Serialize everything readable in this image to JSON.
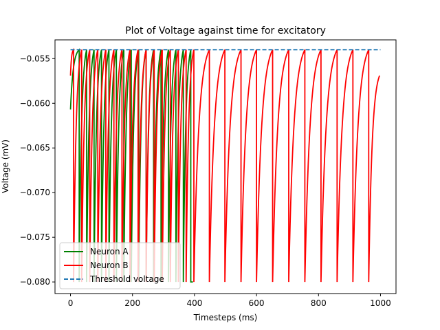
{
  "chart_data": {
    "type": "line",
    "title": "Plot of Voltage against time for excitatory",
    "xlabel": "Timesteps (ms)",
    "ylabel": "Voltage (mV)",
    "xlim": [
      -50,
      1050
    ],
    "ylim": [
      -0.0813,
      -0.0529
    ],
    "x_ticks": [
      0,
      200,
      400,
      600,
      800,
      1000
    ],
    "y_ticks": [
      -0.08,
      -0.075,
      -0.07,
      -0.065,
      -0.06,
      -0.055
    ],
    "y_tick_labels": [
      "−0.080",
      "−0.075",
      "−0.070",
      "−0.065",
      "−0.060",
      "−0.055"
    ],
    "x_tick_labels": [
      "0",
      "200",
      "400",
      "600",
      "800",
      "1000"
    ],
    "grid": false,
    "legend_position": "lower-left",
    "series": [
      {
        "name": "Neuron A",
        "color": "#008000",
        "reset_voltage": -0.08,
        "threshold": -0.054,
        "start": {
          "x": 0,
          "y": -0.0607
        },
        "end": {
          "x": 395,
          "y": -0.08
        },
        "spike_times": [
          28,
          52,
          76,
          100,
          124,
          148,
          172,
          196,
          220,
          244,
          268,
          292,
          316,
          340,
          364,
          388
        ]
      },
      {
        "name": "Neuron B",
        "color": "#ff0000",
        "reset_voltage": -0.08,
        "threshold": -0.054,
        "start": {
          "x": 0,
          "y": -0.0569
        },
        "end": {
          "x": 997,
          "y": -0.0569
        },
        "spike_times": [
          10,
          36,
          62,
          88,
          114,
          140,
          166,
          192,
          218,
          244,
          270,
          296,
          322,
          348,
          373,
          398,
          448,
          498,
          550,
          600,
          652,
          704,
          756,
          808,
          860,
          911,
          962
        ]
      },
      {
        "name": "Threshold voltage",
        "color": "#1f77b4",
        "dashed": true,
        "x": [
          0,
          1000
        ],
        "y": [
          -0.054,
          -0.054
        ]
      }
    ]
  }
}
